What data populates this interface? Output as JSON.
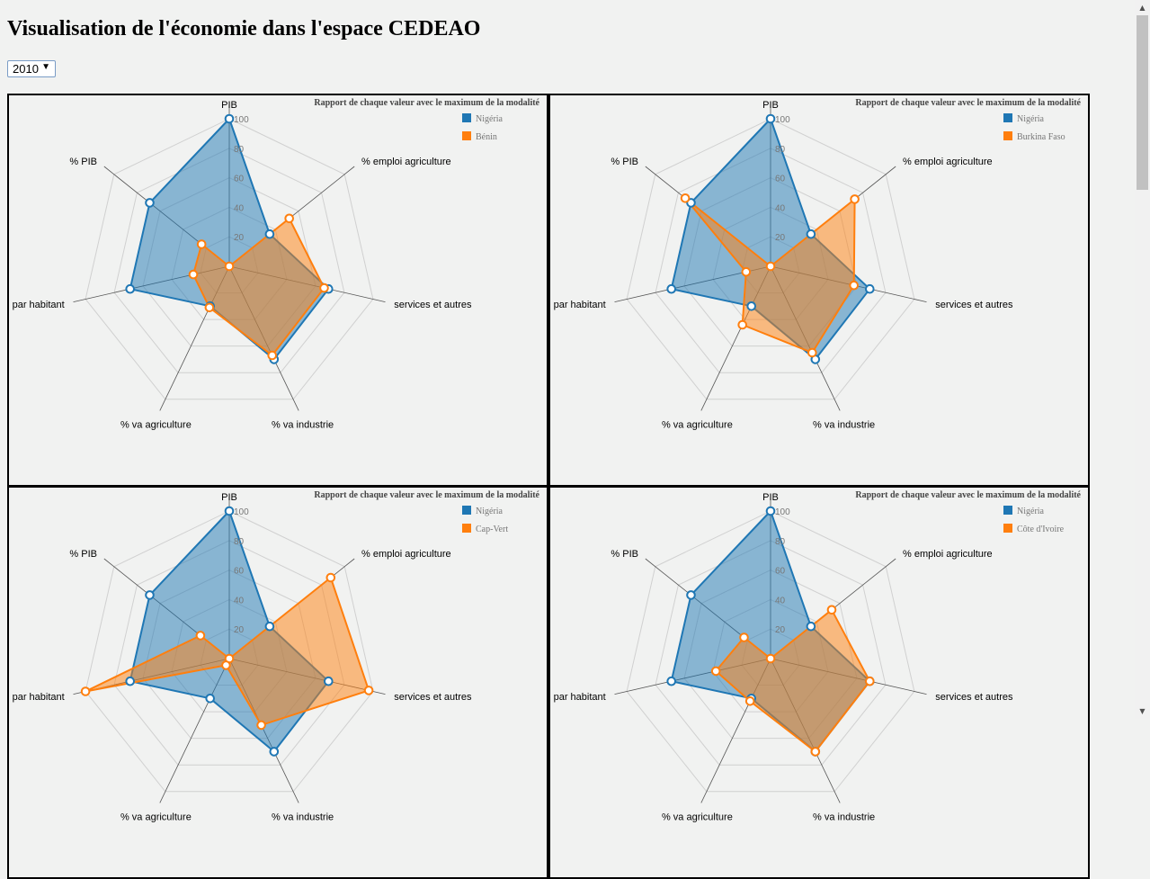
{
  "title": "Visualisation de l'économie dans l'espace CEDEAO",
  "year_select": {
    "value": "2010",
    "arrow": "▼"
  },
  "colors": {
    "base": "#1f77b4",
    "compare": "#ff7f0e",
    "grid": "#d0d0d0",
    "axis": "#555555"
  },
  "chart_data": [
    {
      "type": "radar",
      "title": "Rapport de chaque valeur avec le maximum de la modalité",
      "axes": [
        "PIB",
        "% emploi agriculture",
        "services et autres",
        "% va industrie",
        "% va agriculture",
        "PIB par habitant",
        "% PIB"
      ],
      "ticks": [
        "20",
        "40",
        "60",
        "80",
        "100"
      ],
      "rmax": 100,
      "legend_position": "top-right",
      "series": [
        {
          "name": "Nigéria",
          "values": [
            100,
            35,
            69,
            70,
            30,
            69,
            69
          ]
        },
        {
          "name": "Bénin",
          "values": [
            0,
            52,
            66,
            67,
            31,
            25,
            24
          ]
        }
      ]
    },
    {
      "type": "radar",
      "title": "Rapport de chaque valeur avec le maximum de la modalité",
      "axes": [
        "PIB",
        "% emploi agriculture",
        "services et autres",
        "% va industrie",
        "% va agriculture",
        "PIB par habitant",
        "% PIB"
      ],
      "ticks": [
        "20",
        "40",
        "60",
        "80",
        "100"
      ],
      "rmax": 100,
      "legend_position": "top-right",
      "series": [
        {
          "name": "Nigéria",
          "values": [
            100,
            35,
            69,
            70,
            30,
            69,
            69
          ]
        },
        {
          "name": "Burkina Faso",
          "values": [
            0,
            73,
            58,
            65,
            44,
            17,
            74
          ]
        }
      ]
    },
    {
      "type": "radar",
      "title": "Rapport de chaque valeur avec le maximum de la modalité",
      "axes": [
        "PIB",
        "% emploi agriculture",
        "services et autres",
        "% va industrie",
        "% va agriculture",
        "PIB par habitant",
        "% PIB"
      ],
      "ticks": [
        "20",
        "40",
        "60",
        "80",
        "100"
      ],
      "rmax": 100,
      "legend_position": "top-right",
      "series": [
        {
          "name": "Nigéria",
          "values": [
            100,
            35,
            69,
            70,
            30,
            69,
            69
          ]
        },
        {
          "name": "Cap-Vert",
          "values": [
            0,
            88,
            97,
            50,
            5,
            100,
            25
          ]
        }
      ]
    },
    {
      "type": "radar",
      "title": "Rapport de chaque valeur avec le maximum de la modalité",
      "axes": [
        "PIB",
        "% emploi agriculture",
        "services et autres",
        "% va industrie",
        "% va agriculture",
        "PIB par habitant",
        "% PIB"
      ],
      "ticks": [
        "20",
        "40",
        "60",
        "80",
        "100"
      ],
      "rmax": 100,
      "legend_position": "top-right",
      "series": [
        {
          "name": "Nigéria",
          "values": [
            100,
            35,
            69,
            70,
            30,
            69,
            69
          ]
        },
        {
          "name": "Côte d'Ivoire",
          "values": [
            0,
            53,
            69,
            70,
            32,
            38,
            23
          ]
        }
      ]
    }
  ]
}
